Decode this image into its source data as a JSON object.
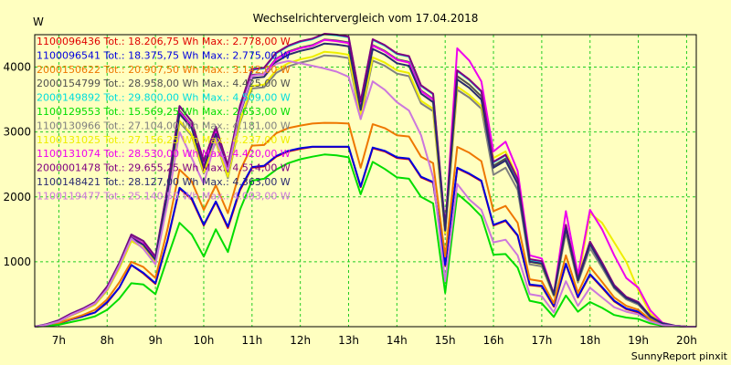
{
  "chart_data": {
    "type": "line",
    "title": "Wechselrichtervergleich vom 17.04.2018",
    "ylabel": "W",
    "footer": "SunnyReport pinxit",
    "xlim": [
      6.5,
      20.2
    ],
    "ylim": [
      0,
      4500
    ],
    "x_ticks": [
      {
        "value": 7,
        "label": "7h"
      },
      {
        "value": 8,
        "label": "8h"
      },
      {
        "value": 9,
        "label": "9h"
      },
      {
        "value": 10,
        "label": "10h"
      },
      {
        "value": 11,
        "label": "11h"
      },
      {
        "value": 12,
        "label": "12h"
      },
      {
        "value": 13,
        "label": "13h"
      },
      {
        "value": 14,
        "label": "14h"
      },
      {
        "value": 15,
        "label": "15h"
      },
      {
        "value": 16,
        "label": "16h"
      },
      {
        "value": 17,
        "label": "17h"
      },
      {
        "value": 18,
        "label": "18h"
      },
      {
        "value": 19,
        "label": "19h"
      },
      {
        "value": 20,
        "label": "20h"
      }
    ],
    "y_ticks": [
      {
        "value": 1000,
        "label": "1000"
      },
      {
        "value": 2000,
        "label": "2000"
      },
      {
        "value": 3000,
        "label": "3000"
      },
      {
        "value": 4000,
        "label": "4000"
      }
    ],
    "grid": true,
    "legend_position": "top-left",
    "x": [
      6.5,
      6.75,
      7,
      7.25,
      7.5,
      7.75,
      8,
      8.25,
      8.5,
      8.75,
      9,
      9.25,
      9.5,
      9.75,
      10,
      10.25,
      10.5,
      10.75,
      11,
      11.25,
      11.5,
      11.75,
      12,
      12.25,
      12.5,
      12.75,
      13,
      13.25,
      13.5,
      13.75,
      14,
      14.25,
      14.5,
      14.75,
      15,
      15.25,
      15.5,
      15.75,
      16,
      16.25,
      16.5,
      16.75,
      17,
      17.25,
      17.5,
      17.75,
      18,
      18.25,
      18.5,
      18.75,
      19,
      19.25,
      19.5,
      19.75,
      20,
      20.2
    ],
    "series": [
      {
        "legend_label": "1100096436 Tot.: 18.206,75 Wh Max.: 2.778,00 W",
        "color": "#e00000",
        "values": [
          0,
          20,
          50,
          110,
          160,
          220,
          370,
          600,
          950,
          820,
          660,
          1320,
          2130,
          1960,
          1560,
          1920,
          1520,
          2100,
          2450,
          2470,
          2620,
          2700,
          2740,
          2770,
          2770,
          2770,
          2770,
          2150,
          2750,
          2700,
          2600,
          2580,
          2300,
          2220,
          940,
          2440,
          2350,
          2240,
          1560,
          1630,
          1400,
          640,
          620,
          310,
          960,
          450,
          800,
          600,
          390,
          270,
          220,
          90,
          30,
          10,
          0,
          0
        ]
      },
      {
        "legend_label": "1100096541 Tot.: 18.375,75 Wh Max.: 2.775,00 W",
        "color": "#0000e0",
        "values": [
          0,
          20,
          50,
          110,
          160,
          220,
          380,
          600,
          950,
          830,
          670,
          1330,
          2140,
          1980,
          1570,
          1930,
          1540,
          2120,
          2460,
          2480,
          2630,
          2710,
          2750,
          2775,
          2775,
          2775,
          2775,
          2160,
          2760,
          2710,
          2610,
          2590,
          2310,
          2230,
          950,
          2450,
          2360,
          2250,
          1570,
          1640,
          1410,
          650,
          630,
          320,
          970,
          460,
          810,
          610,
          400,
          280,
          230,
          100,
          30,
          10,
          0,
          0
        ]
      },
      {
        "legend_label": "2000150622 Tot.: 20.907,50 Wh Max.: 3.142,00 W",
        "color": "#ee7700",
        "values": [
          0,
          20,
          55,
          120,
          180,
          260,
          420,
          680,
          1000,
          920,
          750,
          1500,
          2420,
          2240,
          1800,
          2180,
          1750,
          2400,
          2790,
          2800,
          2980,
          3060,
          3100,
          3130,
          3142,
          3140,
          3130,
          2450,
          3120,
          3060,
          2950,
          2930,
          2620,
          2520,
          1080,
          2770,
          2680,
          2550,
          1780,
          1860,
          1600,
          730,
          700,
          360,
          1100,
          520,
          920,
          690,
          450,
          320,
          260,
          110,
          35,
          10,
          0,
          0
        ]
      },
      {
        "legend_label": "2000154799 Tot.: 28.958,00 Wh Max.: 4.425,00 W",
        "color": "#505050",
        "values": [
          0,
          30,
          80,
          180,
          260,
          360,
          590,
          950,
          1390,
          1280,
          1040,
          2080,
          3330,
          3100,
          2490,
          3010,
          2420,
          3320,
          3880,
          3900,
          4130,
          4240,
          4300,
          4340,
          4425,
          4410,
          4380,
          3390,
          4340,
          4250,
          4120,
          4080,
          3640,
          3510,
          1500,
          3860,
          3730,
          3550,
          2480,
          2590,
          2230,
          1010,
          980,
          500,
          1530,
          720,
          1280,
          960,
          620,
          440,
          360,
          150,
          50,
          15,
          0,
          0
        ]
      },
      {
        "legend_label": "2000149892 Tot.: 29.800,00 Wh Max.: 4.509,00 W",
        "color": "#00dddd",
        "values": [
          0,
          40,
          100,
          200,
          280,
          380,
          620,
          980,
          1420,
          1320,
          1080,
          2140,
          3400,
          3160,
          2550,
          3080,
          2480,
          3400,
          3960,
          3980,
          4210,
          4320,
          4390,
          4430,
          4509,
          4490,
          4460,
          3460,
          4420,
          4330,
          4200,
          4160,
          3710,
          3580,
          1530,
          3940,
          3800,
          3620,
          2530,
          2640,
          2270,
          1030,
          1000,
          510,
          1560,
          730,
          1300,
          980,
          630,
          450,
          370,
          160,
          50,
          15,
          0,
          0
        ]
      },
      {
        "legend_label": "1100129553 Tot.: 15.569,25 Wh Max.: 2.653,00 W",
        "color": "#00dd00",
        "values": [
          0,
          10,
          30,
          70,
          110,
          160,
          260,
          430,
          670,
          650,
          500,
          1060,
          1600,
          1420,
          1080,
          1500,
          1150,
          1800,
          2250,
          2280,
          2420,
          2520,
          2580,
          2620,
          2653,
          2640,
          2610,
          2040,
          2540,
          2430,
          2300,
          2280,
          2000,
          1900,
          520,
          2050,
          1890,
          1700,
          1110,
          1120,
          910,
          400,
          360,
          150,
          480,
          230,
          380,
          290,
          180,
          140,
          120,
          50,
          15,
          5,
          0,
          0
        ]
      },
      {
        "legend_label": "1100130966 Tot.: 27.104,00 Wh Max.: 4.181,00 W",
        "color": "#808080",
        "values": [
          0,
          30,
          75,
          170,
          250,
          340,
          560,
          900,
          1320,
          1220,
          990,
          1980,
          3150,
          2940,
          2360,
          2850,
          2290,
          3140,
          3670,
          3690,
          3910,
          4010,
          4070,
          4110,
          4181,
          4170,
          4140,
          3200,
          4100,
          4020,
          3900,
          3860,
          3440,
          3320,
          1420,
          3650,
          3530,
          3360,
          2340,
          2450,
          2110,
          960,
          930,
          470,
          1450,
          680,
          1210,
          910,
          590,
          420,
          340,
          140,
          45,
          15,
          0,
          0
        ]
      },
      {
        "legend_label": "1100131025 Tot.: 27.156,25 Wh Max.: 4.237,00 W",
        "color": "#eeee00",
        "values": [
          0,
          30,
          75,
          170,
          250,
          340,
          560,
          900,
          1320,
          1220,
          990,
          1990,
          3170,
          2960,
          2380,
          2870,
          2310,
          3170,
          3710,
          3730,
          3950,
          4060,
          4120,
          4160,
          4237,
          4220,
          4190,
          3240,
          4150,
          4070,
          3950,
          3910,
          3480,
          3360,
          1440,
          3700,
          3570,
          3400,
          2600,
          2700,
          2300,
          1000,
          960,
          480,
          1500,
          700,
          1750,
          1600,
          1300,
          1000,
          560,
          200,
          60,
          15,
          0,
          0
        ]
      },
      {
        "legend_label": "1100131074 Tot.: 28.530,00 Wh Max.: 4.420,00 W",
        "color": "#ee00ee",
        "values": [
          0,
          30,
          80,
          180,
          260,
          360,
          590,
          950,
          1380,
          1280,
          1040,
          2070,
          3310,
          3090,
          2480,
          3000,
          2410,
          3310,
          3870,
          3890,
          4120,
          4230,
          4290,
          4330,
          4420,
          4400,
          4370,
          3380,
          4330,
          4240,
          4110,
          4070,
          3630,
          3500,
          1500,
          4290,
          4100,
          3780,
          2700,
          2850,
          2400,
          1100,
          1050,
          500,
          1780,
          800,
          1800,
          1500,
          1100,
          750,
          600,
          250,
          60,
          15,
          0,
          0
        ]
      },
      {
        "legend_label": "2000001478 Tot.: 29.655,25 Wh Max.: 4.514,00 W",
        "color": "#800080",
        "values": [
          0,
          40,
          100,
          200,
          280,
          380,
          620,
          980,
          1420,
          1320,
          1080,
          2140,
          3400,
          3160,
          2550,
          3080,
          2480,
          3400,
          3970,
          3990,
          4220,
          4330,
          4400,
          4440,
          4514,
          4500,
          4470,
          3470,
          4430,
          4340,
          4210,
          4170,
          3720,
          3590,
          1540,
          3950,
          3810,
          3630,
          2540,
          2650,
          2280,
          1040,
          1010,
          510,
          1570,
          740,
          1310,
          990,
          640,
          460,
          380,
          160,
          50,
          15,
          0,
          0
        ]
      },
      {
        "legend_label": "1100148421 Tot.: 28.127,00 Wh Max.: 4.363,00 W",
        "color": "#2a2a70",
        "values": [
          0,
          30,
          80,
          180,
          260,
          360,
          580,
          940,
          1370,
          1260,
          1030,
          2050,
          3280,
          3060,
          2450,
          2970,
          2390,
          3280,
          3830,
          3850,
          4080,
          4190,
          4250,
          4290,
          4363,
          4350,
          4320,
          3340,
          4280,
          4190,
          4060,
          4020,
          3590,
          3460,
          1480,
          3810,
          3680,
          3500,
          2450,
          2560,
          2200,
          1000,
          970,
          490,
          1510,
          710,
          1270,
          950,
          610,
          440,
          360,
          150,
          50,
          15,
          0,
          0
        ]
      },
      {
        "legend_label": "1100119477 Tot.: 25.140,50 Wh Max.: 4.093,00 W",
        "color": "#cc77dd",
        "values": [
          0,
          30,
          80,
          180,
          260,
          360,
          580,
          940,
          1360,
          1200,
          960,
          1900,
          3000,
          2600,
          2200,
          2900,
          2400,
          3300,
          3860,
          3900,
          4050,
          4093,
          4060,
          4020,
          3980,
          3930,
          3850,
          3200,
          3780,
          3650,
          3460,
          3330,
          2950,
          2300,
          700,
          2200,
          1960,
          1800,
          1300,
          1340,
          1100,
          500,
          470,
          220,
          700,
          320,
          600,
          450,
          300,
          230,
          190,
          80,
          25,
          10,
          0,
          0
        ]
      }
    ]
  }
}
